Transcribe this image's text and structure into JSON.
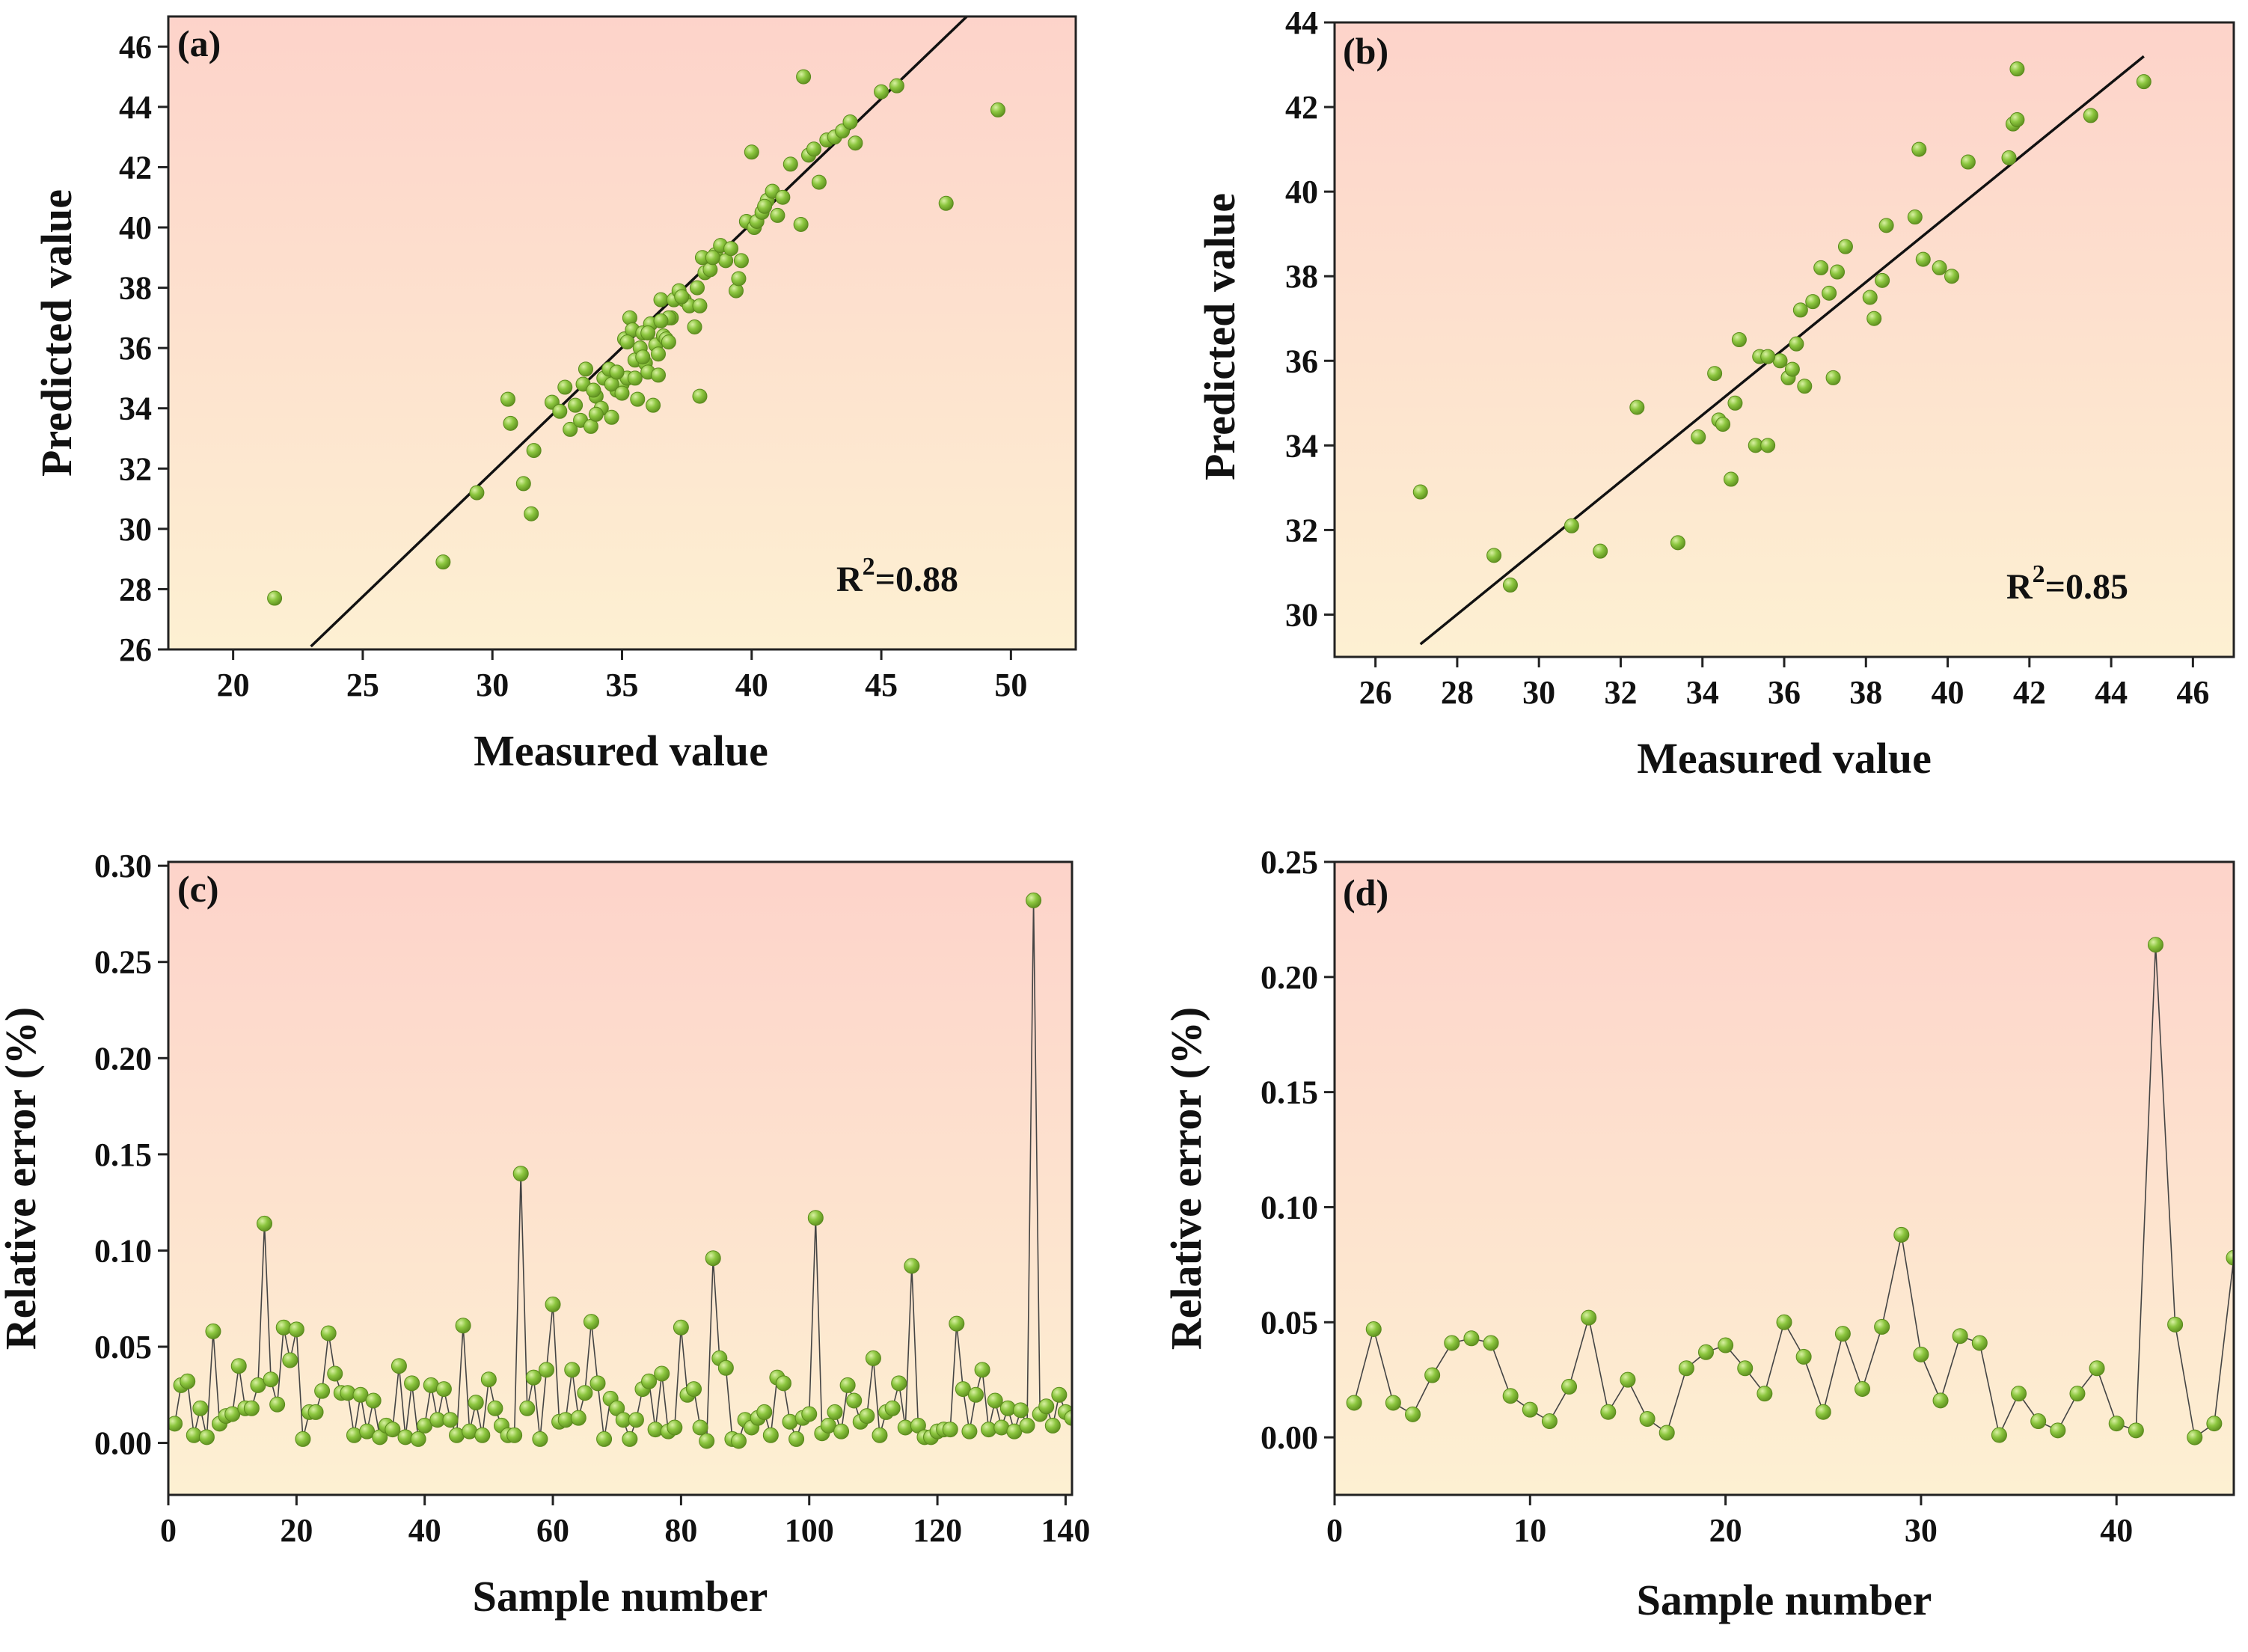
{
  "colors": {
    "bg_top": "#fdd3ca",
    "bg_bottom": "#fdf0d2",
    "point_fill": "#8cc63f",
    "point_highlight": "#d9f0a3",
    "point_edge": "#5a8a1c",
    "fit_line": "#111111",
    "error_line": "#444444"
  },
  "chart_data": [
    {
      "id": "a",
      "type": "scatter",
      "panel_label": "(a)",
      "xlabel": "Measured value",
      "ylabel": "Predicted value",
      "xlim": [
        17.5,
        52.5
      ],
      "ylim": [
        26,
        47
      ],
      "xticks": [
        20,
        25,
        30,
        35,
        40,
        45,
        50
      ],
      "yticks": [
        26,
        28,
        30,
        32,
        34,
        36,
        38,
        40,
        42,
        44,
        46
      ],
      "annotation": {
        "base": "R",
        "sup": "2",
        "rest": "=0.88"
      },
      "fit_line": [
        [
          23,
          26.1
        ],
        [
          48.3,
          47
        ]
      ],
      "x": [
        21.6,
        28.1,
        29.4,
        30.6,
        30.7,
        31.2,
        31.5,
        31.6,
        32.3,
        32.6,
        32.8,
        33.0,
        33.2,
        33.4,
        33.6,
        33.8,
        34.0,
        34.2,
        34.3,
        34.5,
        34.6,
        34.8,
        35.0,
        35.1,
        35.2,
        35.3,
        35.4,
        35.5,
        35.6,
        35.7,
        35.8,
        35.9,
        36.0,
        36.1,
        36.2,
        36.3,
        36.4,
        36.5,
        36.6,
        36.7,
        36.8,
        36.9,
        37.0,
        37.2,
        37.4,
        37.6,
        37.8,
        37.9,
        38.0,
        38.1,
        38.2,
        38.4,
        38.6,
        38.8,
        39.0,
        39.2,
        39.4,
        39.6,
        39.8,
        40.0,
        40.1,
        40.2,
        40.4,
        40.6,
        40.8,
        41.0,
        41.2,
        41.5,
        41.9,
        42.0,
        42.2,
        42.4,
        42.6,
        42.9,
        43.2,
        43.5,
        43.8,
        44.0,
        45.0,
        45.6,
        47.5,
        49.5,
        34.6,
        35.8,
        36.4,
        38.0,
        35.2,
        33.5,
        34.0,
        35.5,
        36.0,
        36.8,
        37.3,
        38.5,
        39.5,
        40.5,
        34.8,
        35.0,
        33.9,
        36.5
      ],
      "y": [
        27.7,
        28.9,
        31.2,
        34.3,
        33.5,
        31.5,
        30.5,
        32.6,
        34.2,
        33.9,
        34.7,
        33.3,
        34.1,
        33.6,
        35.3,
        33.4,
        34.4,
        34.0,
        35.0,
        35.3,
        33.7,
        34.6,
        34.8,
        36.3,
        35.0,
        37.0,
        36.6,
        35.6,
        34.3,
        36.0,
        36.5,
        35.5,
        35.2,
        36.8,
        34.1,
        36.1,
        35.8,
        37.6,
        36.4,
        36.3,
        36.2,
        37.0,
        37.6,
        37.9,
        37.6,
        37.4,
        36.7,
        38.0,
        34.4,
        39.0,
        38.5,
        38.6,
        39.1,
        39.4,
        38.9,
        39.3,
        37.9,
        38.9,
        40.2,
        42.5,
        40.0,
        40.2,
        40.5,
        40.9,
        41.2,
        40.4,
        41.0,
        42.1,
        40.1,
        45.0,
        42.4,
        42.6,
        41.5,
        42.9,
        43.0,
        43.2,
        43.5,
        42.8,
        44.5,
        44.7,
        40.8,
        43.9,
        34.8,
        35.7,
        35.1,
        37.4,
        36.2,
        34.8,
        33.8,
        35.0,
        36.5,
        37.0,
        37.7,
        39.0,
        38.3,
        40.7,
        35.2,
        34.5,
        34.6,
        36.9
      ]
    },
    {
      "id": "b",
      "type": "scatter",
      "panel_label": "(b)",
      "xlabel": "Measured value",
      "ylabel": "Predicted value",
      "xlim": [
        25.0,
        47.0
      ],
      "ylim": [
        29.0,
        44.0
      ],
      "xticks": [
        26,
        28,
        30,
        32,
        34,
        36,
        38,
        40,
        42,
        44,
        46
      ],
      "yticks": [
        30,
        32,
        34,
        36,
        38,
        40,
        42,
        44
      ],
      "annotation": {
        "base": "R",
        "sup": "2",
        "rest": "=0.85"
      },
      "fit_line": [
        [
          27.1,
          29.3
        ],
        [
          44.8,
          43.2
        ]
      ],
      "x": [
        27.1,
        28.9,
        29.3,
        30.8,
        31.5,
        32.4,
        33.4,
        33.9,
        34.3,
        34.4,
        34.5,
        34.8,
        34.9,
        35.3,
        35.4,
        35.6,
        35.9,
        36.1,
        36.2,
        36.4,
        36.5,
        36.7,
        36.9,
        37.1,
        37.3,
        37.5,
        38.1,
        38.2,
        38.4,
        38.5,
        39.2,
        39.3,
        39.4,
        39.8,
        40.1,
        40.5,
        41.5,
        41.6,
        41.7,
        41.7,
        43.5,
        44.8,
        35.6,
        37.2,
        34.7,
        36.3
      ],
      "y": [
        32.9,
        31.4,
        30.7,
        32.1,
        31.5,
        34.9,
        31.7,
        34.2,
        35.7,
        34.6,
        34.5,
        35.0,
        36.5,
        34.0,
        36.1,
        34.0,
        36.0,
        35.6,
        35.8,
        37.2,
        35.4,
        37.4,
        38.2,
        37.6,
        38.1,
        38.7,
        37.5,
        37.0,
        37.9,
        39.2,
        39.4,
        41.0,
        38.4,
        38.2,
        38.0,
        40.7,
        40.8,
        41.6,
        41.7,
        42.9,
        41.8,
        42.6,
        36.1,
        35.6,
        33.2,
        36.4
      ]
    },
    {
      "id": "c",
      "type": "line",
      "panel_label": "(c)",
      "xlabel": "Sample number",
      "ylabel": "Relative error (%)",
      "xlim": [
        0,
        141
      ],
      "ylim": [
        -0.027,
        0.302
      ],
      "xticks": [
        0,
        20,
        40,
        60,
        80,
        100,
        120,
        140
      ],
      "yticks": [
        0.0,
        0.05,
        0.1,
        0.15,
        0.2,
        0.25,
        0.3
      ],
      "ytick_labels": [
        "0.00",
        "0.05",
        "0.10",
        "0.15",
        "0.20",
        "0.25",
        "0.30"
      ],
      "x": [
        1,
        2,
        3,
        4,
        5,
        6,
        7,
        8,
        9,
        10,
        11,
        12,
        13,
        14,
        15,
        16,
        17,
        18,
        19,
        20,
        21,
        22,
        23,
        24,
        25,
        26,
        27,
        28,
        29,
        30,
        31,
        32,
        33,
        34,
        35,
        36,
        37,
        38,
        39,
        40,
        41,
        42,
        43,
        44,
        45,
        46,
        47,
        48,
        49,
        50,
        51,
        52,
        53,
        54,
        55,
        56,
        57,
        58,
        59,
        60,
        61,
        62,
        63,
        64,
        65,
        66,
        67,
        68,
        69,
        70,
        71,
        72,
        73,
        74,
        75,
        76,
        77,
        78,
        79,
        80,
        81,
        82,
        83,
        84,
        85,
        86,
        87,
        88,
        89,
        90,
        91,
        92,
        93,
        94,
        95,
        96,
        97,
        98,
        99,
        100,
        101,
        102,
        103,
        104,
        105,
        106,
        107,
        108,
        109,
        110,
        111,
        112,
        113,
        114,
        115,
        116,
        117,
        118,
        119,
        120,
        121,
        122,
        123,
        124,
        125,
        126,
        127,
        128,
        129,
        130,
        131,
        132,
        133,
        134,
        135,
        136,
        137,
        138,
        139,
        140,
        141
      ],
      "y": [
        0.01,
        0.03,
        0.032,
        0.004,
        0.018,
        0.003,
        0.058,
        0.01,
        0.014,
        0.015,
        0.04,
        0.018,
        0.018,
        0.03,
        0.114,
        0.033,
        0.02,
        0.06,
        0.043,
        0.059,
        0.002,
        0.016,
        0.016,
        0.027,
        0.057,
        0.036,
        0.026,
        0.026,
        0.004,
        0.025,
        0.006,
        0.022,
        0.003,
        0.009,
        0.007,
        0.04,
        0.003,
        0.031,
        0.002,
        0.009,
        0.03,
        0.012,
        0.028,
        0.012,
        0.004,
        0.061,
        0.006,
        0.021,
        0.004,
        0.033,
        0.018,
        0.009,
        0.004,
        0.004,
        0.14,
        0.018,
        0.034,
        0.002,
        0.038,
        0.072,
        0.011,
        0.012,
        0.038,
        0.013,
        0.026,
        0.063,
        0.031,
        0.002,
        0.023,
        0.018,
        0.012,
        0.002,
        0.012,
        0.028,
        0.032,
        0.007,
        0.036,
        0.006,
        0.008,
        0.06,
        0.025,
        0.028,
        0.008,
        0.001,
        0.096,
        0.044,
        0.039,
        0.002,
        0.001,
        0.012,
        0.008,
        0.013,
        0.016,
        0.004,
        0.034,
        0.031,
        0.011,
        0.002,
        0.013,
        0.015,
        0.117,
        0.005,
        0.009,
        0.016,
        0.006,
        0.03,
        0.022,
        0.011,
        0.014,
        0.044,
        0.004,
        0.016,
        0.018,
        0.031,
        0.008,
        0.092,
        0.009,
        0.003,
        0.003,
        0.006,
        0.007,
        0.007,
        0.062,
        0.028,
        0.006,
        0.025,
        0.038,
        0.007,
        0.022,
        0.008,
        0.018,
        0.006,
        0.017,
        0.009,
        0.282,
        0.015,
        0.019,
        0.009,
        0.025,
        0.016,
        0.013
      ]
    },
    {
      "id": "d",
      "type": "line",
      "panel_label": "(d)",
      "xlabel": "Sample number",
      "ylabel": "Relative error (%)",
      "xlim": [
        0,
        46
      ],
      "ylim": [
        -0.025,
        0.25
      ],
      "xticks": [
        0,
        10,
        20,
        30,
        40
      ],
      "yticks": [
        0.0,
        0.05,
        0.1,
        0.15,
        0.2,
        0.25
      ],
      "ytick_labels": [
        "0.00",
        "0.05",
        "0.10",
        "0.15",
        "0.20",
        "0.25"
      ],
      "x": [
        1,
        2,
        3,
        4,
        5,
        6,
        7,
        8,
        9,
        10,
        11,
        12,
        13,
        14,
        15,
        16,
        17,
        18,
        19,
        20,
        21,
        22,
        23,
        24,
        25,
        26,
        27,
        28,
        29,
        30,
        31,
        32,
        33,
        34,
        35,
        36,
        37,
        38,
        39,
        40,
        41,
        42,
        43,
        44,
        45,
        46
      ],
      "y": [
        0.015,
        0.047,
        0.015,
        0.01,
        0.027,
        0.041,
        0.043,
        0.041,
        0.018,
        0.012,
        0.007,
        0.022,
        0.052,
        0.011,
        0.025,
        0.008,
        0.002,
        0.03,
        0.037,
        0.04,
        0.03,
        0.019,
        0.05,
        0.035,
        0.011,
        0.045,
        0.021,
        0.048,
        0.088,
        0.036,
        0.016,
        0.044,
        0.041,
        0.001,
        0.019,
        0.007,
        0.003,
        0.019,
        0.03,
        0.006,
        0.003,
        0.214,
        0.049,
        0.0,
        0.006,
        0.078
      ]
    }
  ]
}
